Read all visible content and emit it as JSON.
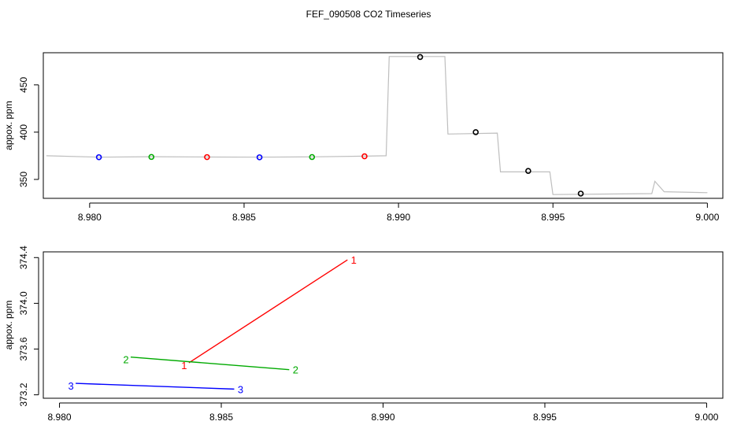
{
  "title": "FEF_090508  CO2 Timeseries",
  "chart_data": [
    {
      "type": "scatter",
      "name": "timeseries",
      "ylabel": "appox. ppm",
      "xlabel": "",
      "xlim": [
        8.9785,
        9.0005
      ],
      "ylim": [
        330,
        484
      ],
      "x_ticks": [
        8.98,
        8.985,
        8.99,
        8.995,
        9.0
      ],
      "x_tick_labels": [
        "8.980",
        "8.985",
        "8.990",
        "8.995",
        "9.000"
      ],
      "y_ticks": [
        350,
        400,
        450
      ],
      "y_tick_labels": [
        "350",
        "400",
        "450"
      ],
      "trace_color": "#bebebe",
      "trace": [
        [
          8.9786,
          375
        ],
        [
          8.9803,
          373.5
        ],
        [
          8.982,
          374
        ],
        [
          8.9838,
          373.7
        ],
        [
          8.9855,
          373.5
        ],
        [
          8.9872,
          373.9
        ],
        [
          8.9889,
          374.6
        ],
        [
          8.9896,
          375
        ],
        [
          8.9897,
          480
        ],
        [
          8.9915,
          480
        ],
        [
          8.9916,
          398
        ],
        [
          8.9932,
          399
        ],
        [
          8.9933,
          358
        ],
        [
          8.9949,
          358
        ],
        [
          8.995,
          334
        ],
        [
          8.9982,
          335
        ],
        [
          8.9983,
          348
        ],
        [
          8.9986,
          337
        ],
        [
          9.0,
          336
        ]
      ],
      "points": [
        {
          "x": 8.9803,
          "y": 373.5,
          "color": "#0000ff"
        },
        {
          "x": 8.982,
          "y": 373.8,
          "color": "#00aa00"
        },
        {
          "x": 8.9838,
          "y": 373.6,
          "color": "#ff0000"
        },
        {
          "x": 8.9855,
          "y": 373.4,
          "color": "#0000ff"
        },
        {
          "x": 8.9872,
          "y": 373.7,
          "color": "#00aa00"
        },
        {
          "x": 8.9889,
          "y": 374.5,
          "color": "#ff0000"
        },
        {
          "x": 8.9907,
          "y": 479.5,
          "color": "#000000"
        },
        {
          "x": 8.9925,
          "y": 400.0,
          "color": "#000000"
        },
        {
          "x": 8.9942,
          "y": 359.0,
          "color": "#000000"
        },
        {
          "x": 8.9959,
          "y": 335.0,
          "color": "#000000"
        }
      ]
    },
    {
      "type": "line",
      "name": "segments",
      "ylabel": "appox. ppm",
      "xlabel": "",
      "xlim": [
        8.9795,
        9.0005
      ],
      "ylim": [
        373.17,
        374.45
      ],
      "x_ticks": [
        8.98,
        8.985,
        8.99,
        8.995,
        9.0
      ],
      "x_tick_labels": [
        "8.980",
        "8.985",
        "8.990",
        "8.995",
        "9.000"
      ],
      "y_ticks": [
        373.2,
        373.6,
        374.0,
        374.4
      ],
      "y_tick_labels": [
        "373.2",
        "373.6",
        "374.0",
        "374.4"
      ],
      "series": [
        {
          "label": "1",
          "color": "#ff0000",
          "x": [
            8.984,
            8.9889
          ],
          "y": [
            373.48,
            374.38
          ]
        },
        {
          "label": "2",
          "color": "#00aa00",
          "x": [
            8.9822,
            8.9871
          ],
          "y": [
            373.53,
            373.42
          ]
        },
        {
          "label": "3",
          "color": "#0000ff",
          "x": [
            8.9805,
            8.9854
          ],
          "y": [
            373.3,
            373.25
          ]
        }
      ]
    }
  ]
}
